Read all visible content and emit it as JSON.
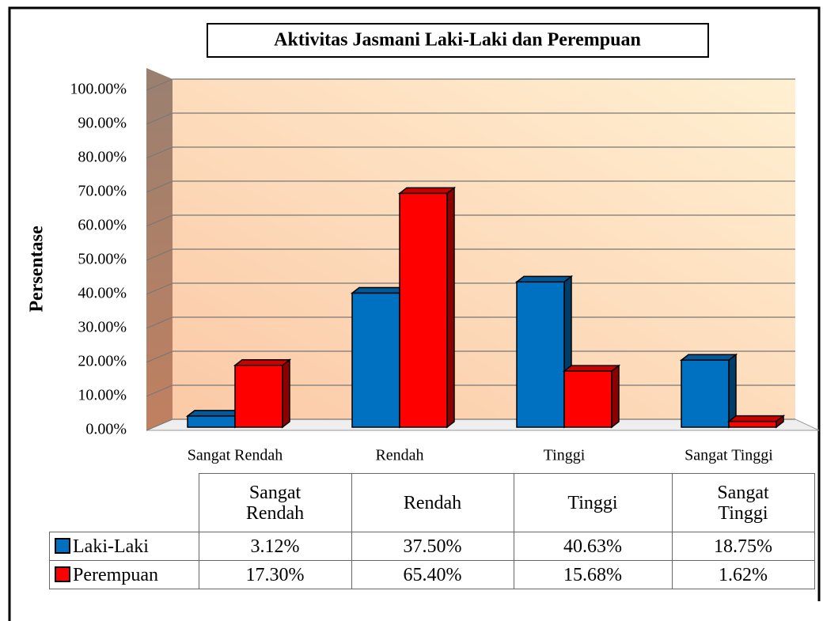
{
  "chart_data": {
    "type": "bar3d",
    "title": "Aktivitas Jasmani Laki-Laki dan Perempuan",
    "ylabel": "Persentase",
    "categories": [
      "Sangat Rendah",
      "Rendah",
      "Tinggi",
      "Sangat Tinggi"
    ],
    "series": [
      {
        "name": "Laki-Laki",
        "color": "#0070c0",
        "values": [
          3.12,
          37.5,
          40.63,
          18.75
        ],
        "value_labels": [
          "3.12%",
          "37.50%",
          "40.63%",
          "18.75%"
        ]
      },
      {
        "name": "Perempuan",
        "color": "#ff0000",
        "values": [
          17.3,
          65.4,
          15.68,
          1.62
        ],
        "value_labels": [
          "17.30%",
          "65.40%",
          "15.68%",
          "1.62%"
        ]
      }
    ],
    "ylim": [
      0,
      100
    ],
    "yticks": [
      {
        "value": 0,
        "label": "0.00%"
      },
      {
        "value": 10,
        "label": "10.00%"
      },
      {
        "value": 20,
        "label": "20.00%"
      },
      {
        "value": 30,
        "label": "30.00%"
      },
      {
        "value": 40,
        "label": "40.00%"
      },
      {
        "value": 50,
        "label": "50.00%"
      },
      {
        "value": 60,
        "label": "60.00%"
      },
      {
        "value": 70,
        "label": "70.00%"
      },
      {
        "value": 80,
        "label": "80.00%"
      },
      {
        "value": 90,
        "label": "90.00%"
      },
      {
        "value": 100,
        "label": "100.00%"
      }
    ],
    "grid": true
  }
}
